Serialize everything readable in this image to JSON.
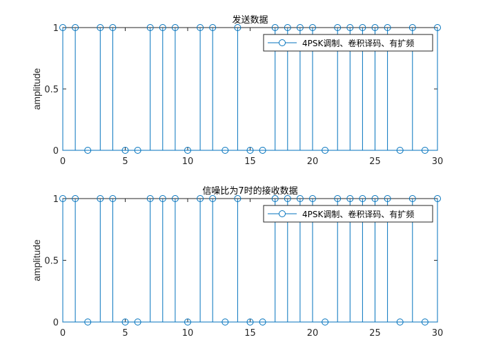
{
  "colors": {
    "stem": "#0072BD",
    "axis": "#262626",
    "background": "#ffffff"
  },
  "chart_data": [
    {
      "type": "stem",
      "title": "发送数据",
      "xlabel": "",
      "ylabel": "amplitude",
      "xlim": [
        0,
        30
      ],
      "ylim": [
        0,
        1
      ],
      "xticks": [
        "0",
        "5",
        "10",
        "15",
        "20",
        "25",
        "30"
      ],
      "yticks": [
        "0",
        "0.5",
        "1"
      ],
      "legend": "4PSK调制、卷积译码、有扩频",
      "legend_position": "top-right",
      "grid": false,
      "x": [
        0,
        1,
        2,
        3,
        4,
        5,
        6,
        7,
        8,
        9,
        10,
        11,
        12,
        13,
        14,
        15,
        16,
        17,
        18,
        19,
        20,
        21,
        22,
        23,
        24,
        25,
        26,
        27,
        28,
        29,
        30
      ],
      "values": [
        1,
        1,
        0,
        1,
        1,
        0,
        0,
        1,
        1,
        1,
        0,
        1,
        1,
        0,
        1,
        0,
        0,
        1,
        1,
        1,
        1,
        0,
        1,
        1,
        1,
        1,
        1,
        0,
        1,
        0,
        1
      ]
    },
    {
      "type": "stem",
      "title": "信噪比为7时的接收数据",
      "xlabel": "",
      "ylabel": "amplitude",
      "xlim": [
        0,
        30
      ],
      "ylim": [
        0,
        1
      ],
      "xticks": [
        "0",
        "5",
        "10",
        "15",
        "20",
        "25",
        "30"
      ],
      "yticks": [
        "0",
        "0.5",
        "1"
      ],
      "legend": "4PSK调制、卷积译码、有扩频",
      "legend_position": "top-right",
      "grid": false,
      "x": [
        0,
        1,
        2,
        3,
        4,
        5,
        6,
        7,
        8,
        9,
        10,
        11,
        12,
        13,
        14,
        15,
        16,
        17,
        18,
        19,
        20,
        21,
        22,
        23,
        24,
        25,
        26,
        27,
        28,
        29,
        30
      ],
      "values": [
        1,
        1,
        0,
        1,
        1,
        0,
        0,
        1,
        1,
        1,
        0,
        1,
        1,
        0,
        1,
        0,
        0,
        1,
        1,
        1,
        1,
        0,
        1,
        1,
        1,
        1,
        1,
        0,
        1,
        0,
        1
      ]
    }
  ]
}
